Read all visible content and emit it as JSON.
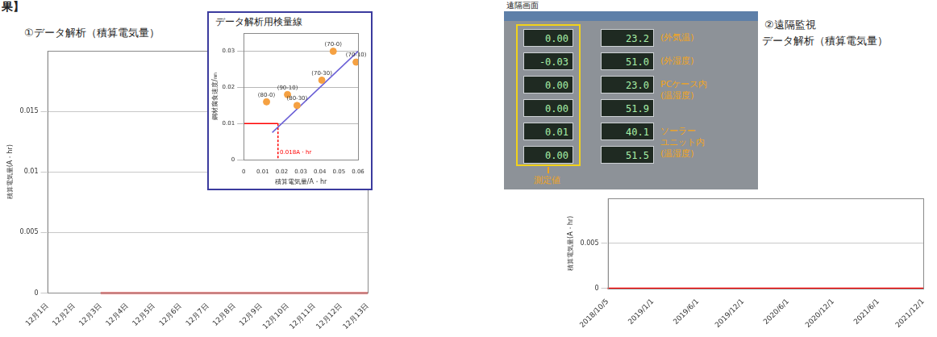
{
  "texts": {
    "corner": "果】",
    "left_title": "①データ解析（積算電気量）",
    "screen_heading": "遠隔画面",
    "right_title_1": "②遠隔監視",
    "right_title_2": "データ解析（積算電気量）"
  },
  "chart_data": [
    {
      "type": "line",
      "y_label": "積算電気量(A・hr)",
      "categories": [
        "12月1日",
        "12月2日",
        "12月3日",
        "12月4日",
        "12月5日",
        "12月6日",
        "12月7日",
        "12月8日",
        "12月9日",
        "12月10日",
        "12月11日",
        "12月12日",
        "12月13日"
      ],
      "series": [
        {
          "color": "#ff0000",
          "values": [
            null,
            null,
            0,
            0,
            0,
            0,
            0,
            0,
            0,
            0,
            0,
            0,
            0
          ]
        }
      ],
      "ylim": [
        0,
        0.02
      ],
      "yticks": [
        0,
        0.005,
        0.01,
        0.015
      ],
      "grid": true
    },
    {
      "type": "scatter",
      "title": "データ解析用検量線",
      "x_label": "積算電気量/A・hr",
      "y_label": "鋼材腐食速度/㎜",
      "xlim": [
        0,
        0.06
      ],
      "xticks": [
        0,
        0.01,
        0.02,
        0.03,
        0.04,
        0.05,
        0.06
      ],
      "ylim": [
        0,
        0.035
      ],
      "yticks": [
        0,
        0.01,
        0.02,
        0.03
      ],
      "grid": true,
      "series": [
        {
          "type": "scatter",
          "marker": "circle",
          "color": "#f5a142",
          "x": [
            0.012,
            0.023,
            0.028,
            0.041,
            0.047,
            0.059
          ],
          "values": [
            0.016,
            0.018,
            0.015,
            0.022,
            0.03,
            0.027
          ],
          "point_labels": [
            "(80-0)",
            "(90-10)",
            "(80-30)",
            "(70-30)",
            "(70-0)",
            "(70-10)"
          ]
        },
        {
          "type": "line",
          "color": "#6a5fd6",
          "x": [
            0.015,
            0.06
          ],
          "values": [
            0.0075,
            0.03
          ]
        },
        {
          "type": "line",
          "color": "#ff0000",
          "x": [
            0,
            0.018
          ],
          "values": [
            0.01,
            0.01
          ]
        },
        {
          "type": "line",
          "color": "#ff0000",
          "line_style": "dashed",
          "x": [
            0.018,
            0.018
          ],
          "values": [
            0.01,
            0
          ]
        }
      ],
      "annotations": [
        {
          "text": "0.018A・hr",
          "x": 0.019,
          "y": 0.002
        }
      ]
    },
    {
      "type": "line",
      "y_label": "積算電気量(A・hr)",
      "categories": [
        "2018/10/5",
        "2019/1/1",
        "2019/6/1",
        "2019/12/1",
        "2020/6/1",
        "2020/12/1",
        "2021/6/1",
        "2021/12/1"
      ],
      "series": [
        {
          "color": "#ff0000",
          "values": [
            0,
            0,
            0,
            0,
            0,
            0,
            0,
            0
          ]
        }
      ],
      "ylim": [
        0,
        0.01
      ],
      "yticks": [
        0,
        0.005
      ],
      "grid": true
    }
  ],
  "screen": {
    "measure_values": [
      "0.00",
      "-0.03",
      "0.00",
      "0.00",
      "0.01",
      "0.00"
    ],
    "env_values": [
      "23.2",
      "51.0",
      "23.0",
      "51.9",
      "40.1",
      "51.5"
    ],
    "labels": [
      [
        "(外気温)"
      ],
      [
        "(外湿度)"
      ],
      [
        "PCケース内",
        "(温湿度)"
      ],
      [
        "ソーラー",
        "ユニット内",
        "(温湿度)"
      ]
    ],
    "caption": "測定値"
  }
}
